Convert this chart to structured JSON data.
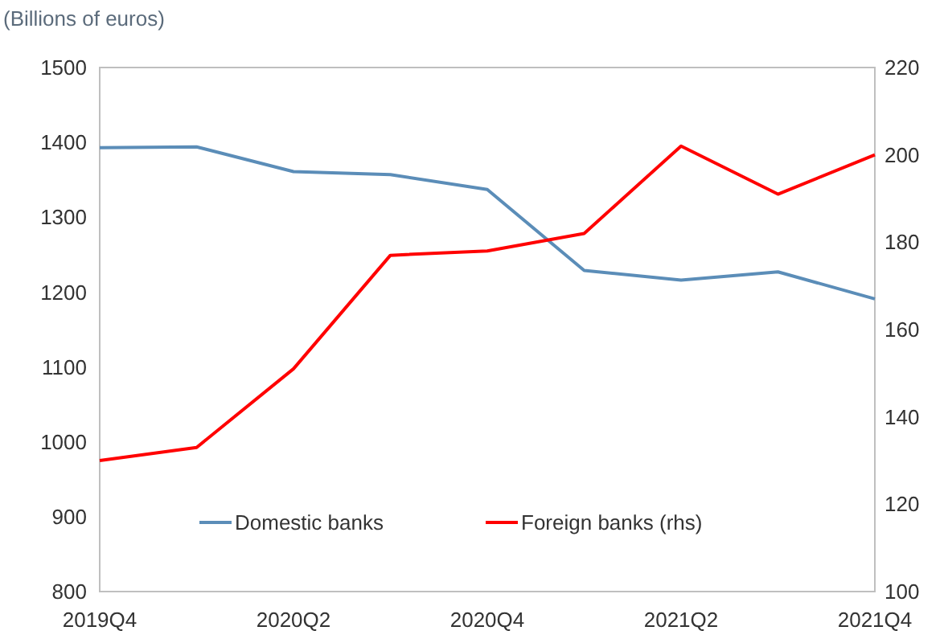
{
  "chart_data": {
    "type": "line",
    "title": "(Billions of euros)",
    "categories": [
      "2019Q4",
      null,
      "2020Q2",
      null,
      "2020Q4",
      null,
      "2021Q2",
      null,
      "2021Q4"
    ],
    "series": [
      {
        "name": "Domestic banks",
        "color": "#5b8db8",
        "values": [
          1393,
          1394,
          1361,
          1357,
          1337,
          1229,
          1216,
          1227,
          1191
        ]
      },
      {
        "name": "Foreign banks (rhs)",
        "color": "#ff0000",
        "axis": "y2",
        "values": [
          130,
          133,
          151,
          177,
          178,
          182,
          202,
          191,
          200
        ]
      }
    ],
    "ylim": [
      800,
      1500
    ],
    "yticks": [
      800,
      900,
      1000,
      1100,
      1200,
      1300,
      1400,
      1500
    ],
    "y2lim": [
      100,
      220
    ],
    "y2ticks": [
      100,
      120,
      140,
      160,
      180,
      200,
      220
    ],
    "grid": false,
    "legend": "bottom",
    "line_style": "solid",
    "marker": "none"
  }
}
